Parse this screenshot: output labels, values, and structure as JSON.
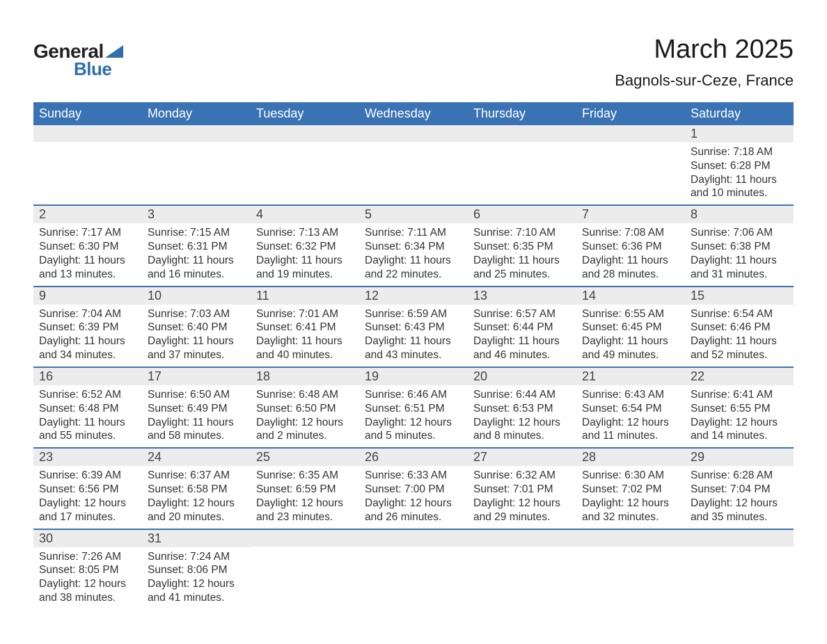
{
  "logo": {
    "part1": "General",
    "part2": "Blue"
  },
  "title": "March 2025",
  "subtitle": "Bagnols-sur-Ceze, France",
  "colors": {
    "header_bg": "#3a73b4",
    "header_text": "#ffffff",
    "row_border": "#3a73b4",
    "daynum_bg": "#ececec",
    "body_text": "#333333",
    "logo_blue": "#2f6fb0",
    "page_bg": "#ffffff"
  },
  "typography": {
    "title_fontsize": 38,
    "subtitle_fontsize": 22,
    "header_fontsize": 18,
    "daynum_fontsize": 18,
    "body_fontsize": 15.5,
    "font_family": "Arial"
  },
  "daysOfWeek": [
    "Sunday",
    "Monday",
    "Tuesday",
    "Wednesday",
    "Thursday",
    "Friday",
    "Saturday"
  ],
  "weeks": [
    [
      {
        "empty": true
      },
      {
        "empty": true
      },
      {
        "empty": true
      },
      {
        "empty": true
      },
      {
        "empty": true
      },
      {
        "empty": true
      },
      {
        "day": "1",
        "sunrise": "Sunrise: 7:18 AM",
        "sunset": "Sunset: 6:28 PM",
        "dl1": "Daylight: 11 hours",
        "dl2": "and 10 minutes."
      }
    ],
    [
      {
        "day": "2",
        "sunrise": "Sunrise: 7:17 AM",
        "sunset": "Sunset: 6:30 PM",
        "dl1": "Daylight: 11 hours",
        "dl2": "and 13 minutes."
      },
      {
        "day": "3",
        "sunrise": "Sunrise: 7:15 AM",
        "sunset": "Sunset: 6:31 PM",
        "dl1": "Daylight: 11 hours",
        "dl2": "and 16 minutes."
      },
      {
        "day": "4",
        "sunrise": "Sunrise: 7:13 AM",
        "sunset": "Sunset: 6:32 PM",
        "dl1": "Daylight: 11 hours",
        "dl2": "and 19 minutes."
      },
      {
        "day": "5",
        "sunrise": "Sunrise: 7:11 AM",
        "sunset": "Sunset: 6:34 PM",
        "dl1": "Daylight: 11 hours",
        "dl2": "and 22 minutes."
      },
      {
        "day": "6",
        "sunrise": "Sunrise: 7:10 AM",
        "sunset": "Sunset: 6:35 PM",
        "dl1": "Daylight: 11 hours",
        "dl2": "and 25 minutes."
      },
      {
        "day": "7",
        "sunrise": "Sunrise: 7:08 AM",
        "sunset": "Sunset: 6:36 PM",
        "dl1": "Daylight: 11 hours",
        "dl2": "and 28 minutes."
      },
      {
        "day": "8",
        "sunrise": "Sunrise: 7:06 AM",
        "sunset": "Sunset: 6:38 PM",
        "dl1": "Daylight: 11 hours",
        "dl2": "and 31 minutes."
      }
    ],
    [
      {
        "day": "9",
        "sunrise": "Sunrise: 7:04 AM",
        "sunset": "Sunset: 6:39 PM",
        "dl1": "Daylight: 11 hours",
        "dl2": "and 34 minutes."
      },
      {
        "day": "10",
        "sunrise": "Sunrise: 7:03 AM",
        "sunset": "Sunset: 6:40 PM",
        "dl1": "Daylight: 11 hours",
        "dl2": "and 37 minutes."
      },
      {
        "day": "11",
        "sunrise": "Sunrise: 7:01 AM",
        "sunset": "Sunset: 6:41 PM",
        "dl1": "Daylight: 11 hours",
        "dl2": "and 40 minutes."
      },
      {
        "day": "12",
        "sunrise": "Sunrise: 6:59 AM",
        "sunset": "Sunset: 6:43 PM",
        "dl1": "Daylight: 11 hours",
        "dl2": "and 43 minutes."
      },
      {
        "day": "13",
        "sunrise": "Sunrise: 6:57 AM",
        "sunset": "Sunset: 6:44 PM",
        "dl1": "Daylight: 11 hours",
        "dl2": "and 46 minutes."
      },
      {
        "day": "14",
        "sunrise": "Sunrise: 6:55 AM",
        "sunset": "Sunset: 6:45 PM",
        "dl1": "Daylight: 11 hours",
        "dl2": "and 49 minutes."
      },
      {
        "day": "15",
        "sunrise": "Sunrise: 6:54 AM",
        "sunset": "Sunset: 6:46 PM",
        "dl1": "Daylight: 11 hours",
        "dl2": "and 52 minutes."
      }
    ],
    [
      {
        "day": "16",
        "sunrise": "Sunrise: 6:52 AM",
        "sunset": "Sunset: 6:48 PM",
        "dl1": "Daylight: 11 hours",
        "dl2": "and 55 minutes."
      },
      {
        "day": "17",
        "sunrise": "Sunrise: 6:50 AM",
        "sunset": "Sunset: 6:49 PM",
        "dl1": "Daylight: 11 hours",
        "dl2": "and 58 minutes."
      },
      {
        "day": "18",
        "sunrise": "Sunrise: 6:48 AM",
        "sunset": "Sunset: 6:50 PM",
        "dl1": "Daylight: 12 hours",
        "dl2": "and 2 minutes."
      },
      {
        "day": "19",
        "sunrise": "Sunrise: 6:46 AM",
        "sunset": "Sunset: 6:51 PM",
        "dl1": "Daylight: 12 hours",
        "dl2": "and 5 minutes."
      },
      {
        "day": "20",
        "sunrise": "Sunrise: 6:44 AM",
        "sunset": "Sunset: 6:53 PM",
        "dl1": "Daylight: 12 hours",
        "dl2": "and 8 minutes."
      },
      {
        "day": "21",
        "sunrise": "Sunrise: 6:43 AM",
        "sunset": "Sunset: 6:54 PM",
        "dl1": "Daylight: 12 hours",
        "dl2": "and 11 minutes."
      },
      {
        "day": "22",
        "sunrise": "Sunrise: 6:41 AM",
        "sunset": "Sunset: 6:55 PM",
        "dl1": "Daylight: 12 hours",
        "dl2": "and 14 minutes."
      }
    ],
    [
      {
        "day": "23",
        "sunrise": "Sunrise: 6:39 AM",
        "sunset": "Sunset: 6:56 PM",
        "dl1": "Daylight: 12 hours",
        "dl2": "and 17 minutes."
      },
      {
        "day": "24",
        "sunrise": "Sunrise: 6:37 AM",
        "sunset": "Sunset: 6:58 PM",
        "dl1": "Daylight: 12 hours",
        "dl2": "and 20 minutes."
      },
      {
        "day": "25",
        "sunrise": "Sunrise: 6:35 AM",
        "sunset": "Sunset: 6:59 PM",
        "dl1": "Daylight: 12 hours",
        "dl2": "and 23 minutes."
      },
      {
        "day": "26",
        "sunrise": "Sunrise: 6:33 AM",
        "sunset": "Sunset: 7:00 PM",
        "dl1": "Daylight: 12 hours",
        "dl2": "and 26 minutes."
      },
      {
        "day": "27",
        "sunrise": "Sunrise: 6:32 AM",
        "sunset": "Sunset: 7:01 PM",
        "dl1": "Daylight: 12 hours",
        "dl2": "and 29 minutes."
      },
      {
        "day": "28",
        "sunrise": "Sunrise: 6:30 AM",
        "sunset": "Sunset: 7:02 PM",
        "dl1": "Daylight: 12 hours",
        "dl2": "and 32 minutes."
      },
      {
        "day": "29",
        "sunrise": "Sunrise: 6:28 AM",
        "sunset": "Sunset: 7:04 PM",
        "dl1": "Daylight: 12 hours",
        "dl2": "and 35 minutes."
      }
    ],
    [
      {
        "day": "30",
        "sunrise": "Sunrise: 7:26 AM",
        "sunset": "Sunset: 8:05 PM",
        "dl1": "Daylight: 12 hours",
        "dl2": "and 38 minutes."
      },
      {
        "day": "31",
        "sunrise": "Sunrise: 7:24 AM",
        "sunset": "Sunset: 8:06 PM",
        "dl1": "Daylight: 12 hours",
        "dl2": "and 41 minutes."
      },
      {
        "empty": true
      },
      {
        "empty": true
      },
      {
        "empty": true
      },
      {
        "empty": true
      },
      {
        "empty": true
      }
    ]
  ]
}
